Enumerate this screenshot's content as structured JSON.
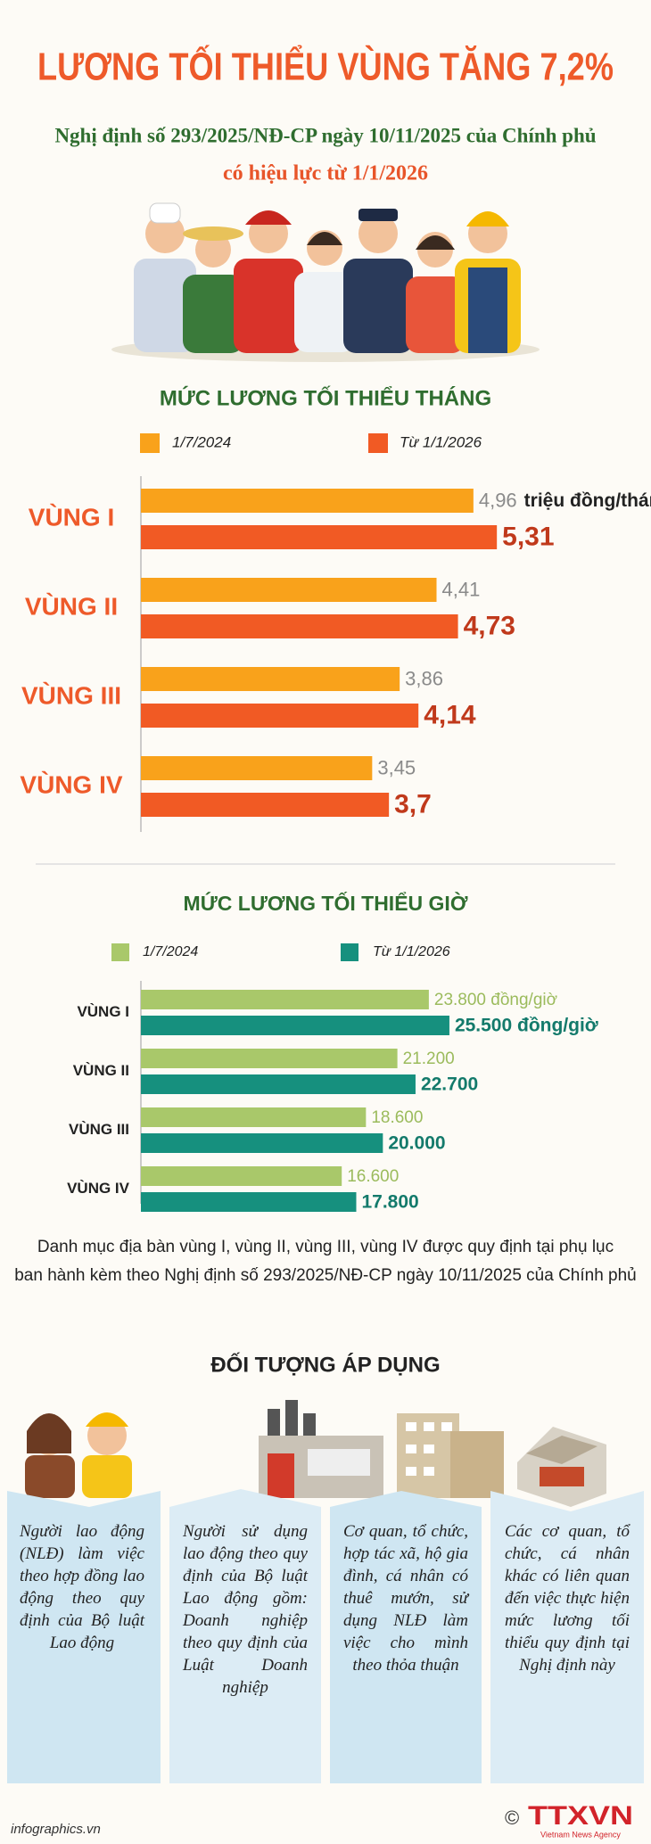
{
  "header": {
    "title": "LƯƠNG TỐI THIỂU VÙNG TĂNG 7,2%",
    "subtitle_lines": [
      "Nghị định số 293/2025/NĐ-CP ngày 10/11/2025 của Chính phủ",
      "có hiệu lực từ 1/1/2026"
    ]
  },
  "chart_data": [
    {
      "type": "bar",
      "orientation": "horizontal",
      "title": "MỨC LƯƠNG TỐI THIỂU THÁNG",
      "unit_label": "triệu đồng/tháng",
      "categories": [
        "VÙNG I",
        "VÙNG II",
        "VÙNG III",
        "VÙNG IV"
      ],
      "series": [
        {
          "name": "1/7/2024",
          "color": "#f9a21b",
          "values": [
            4.96,
            4.41,
            3.86,
            3.45
          ],
          "value_labels": [
            "4,96",
            "4,41",
            "3,86",
            "3,45"
          ]
        },
        {
          "name": "Từ 1/1/2026",
          "color": "#f15a24",
          "values": [
            5.31,
            4.73,
            4.14,
            3.7
          ],
          "value_labels": [
            "5,31",
            "4,73",
            "4,14",
            "3,7"
          ]
        }
      ],
      "xlim": [
        0,
        5.8
      ]
    },
    {
      "type": "bar",
      "orientation": "horizontal",
      "title": "MỨC LƯƠNG TỐI THIỂU GIỜ",
      "categories": [
        "VÙNG I",
        "VÙNG II",
        "VÙNG III",
        "VÙNG IV"
      ],
      "series": [
        {
          "name": "1/7/2024",
          "color": "#a9c86a",
          "values": [
            23800,
            21200,
            18600,
            16600
          ],
          "value_labels": [
            "23.800 đồng/giờ",
            "21.200",
            "18.600",
            "16.600"
          ]
        },
        {
          "name": "Từ 1/1/2026",
          "color": "#16907e",
          "values": [
            25500,
            22700,
            20000,
            17800
          ],
          "value_labels": [
            "25.500 đồng/giờ",
            "22.700",
            "20.000",
            "17.800"
          ]
        }
      ],
      "xlim": [
        0,
        30000
      ]
    }
  ],
  "note_lines": [
    "Danh mục địa bàn vùng I, vùng II, vùng III, vùng IV được quy định tại phụ lục",
    "ban hành kèm theo Nghị định số 293/2025/NĐ-CP ngày 10/11/2025 của Chính phủ"
  ],
  "targets": {
    "title": "ĐỐI TƯỢNG ÁP DỤNG",
    "items": [
      "Người lao động (NLĐ) làm việc theo hợp đồng lao động theo quy định của Bộ luật Lao động",
      "Người sử dụng lao động theo quy định của Bộ luật Lao động gồm: Doanh nghiệp theo quy định của Luật Doanh nghiệp",
      "Cơ quan, tổ chức, hợp tác xã, hộ gia đình, cá nhân có thuê mướn, sử dụng NLĐ làm việc cho mình theo thỏa thuận",
      "Các cơ quan, tổ chức, cá nhân khác có liên quan đến việc thực hiện mức lương tối thiểu quy định tại Nghị định này"
    ]
  },
  "footer": {
    "site": "infographics.vn",
    "copyright": "©",
    "agency": "TTXVN",
    "agency_en": "Vietnam News Agency"
  }
}
